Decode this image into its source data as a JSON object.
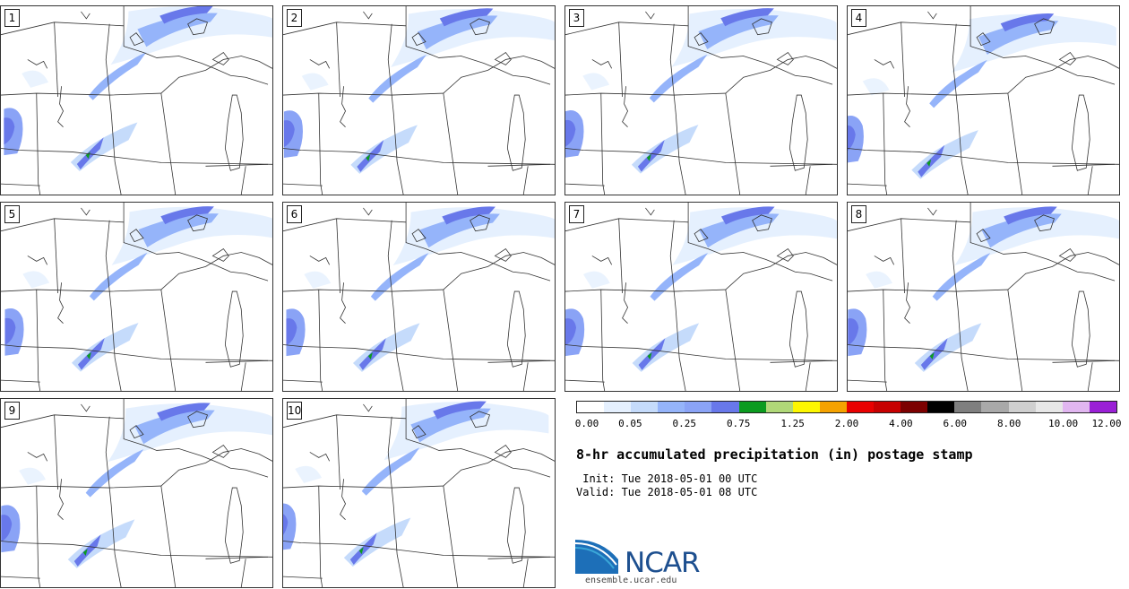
{
  "panels": [
    {
      "label": "1"
    },
    {
      "label": "2"
    },
    {
      "label": "3"
    },
    {
      "label": "4"
    },
    {
      "label": "5"
    },
    {
      "label": "6"
    },
    {
      "label": "7"
    },
    {
      "label": "8"
    },
    {
      "label": "9"
    },
    {
      "label": "10"
    }
  ],
  "colorbar": {
    "colors": [
      "#ffffff",
      "#e5f0fe",
      "#c5dbfb",
      "#95b4fa",
      "#8aa3f6",
      "#6878ea",
      "#0b9b1f",
      "#b0d878",
      "#fdf700",
      "#f5a200",
      "#e90000",
      "#c70000",
      "#7c0000",
      "#000000",
      "#7f7f7f",
      "#a9a9a9",
      "#cfcfcf",
      "#e7e7e7",
      "#e1b6f0",
      "#9a1fd6"
    ],
    "ticks": [
      "0.00",
      "0.05",
      "0.25",
      "0.75",
      "1.25",
      "2.00",
      "4.00",
      "6.00",
      "8.00",
      "10.00",
      "12.00"
    ]
  },
  "title": "8-hr accumulated precipitation (in) postage stamp",
  "init": " Init: Tue 2018-05-01 00 UTC",
  "valid": "Valid: Tue 2018-05-01 08 UTC",
  "logo": {
    "text": "NCAR",
    "url": "ensemble.ucar.edu",
    "colors": {
      "blue": "#1d6fb8",
      "teal": "#3aa6d8"
    }
  }
}
